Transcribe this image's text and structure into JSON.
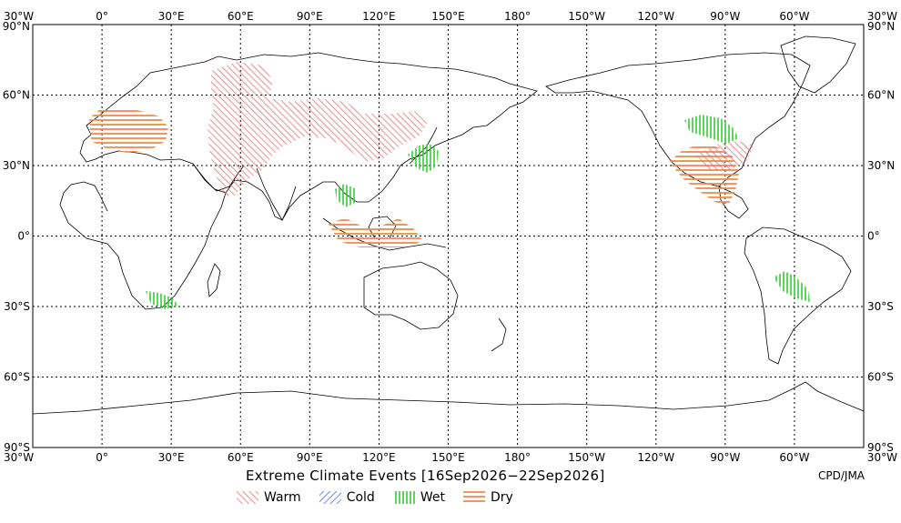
{
  "title": "Extreme Climate Events [16Sep2026−22Sep2026]",
  "credit": "CPD/JMA",
  "axes": {
    "lon_labels": [
      "30°W",
      "0°",
      "30°E",
      "60°E",
      "90°E",
      "120°E",
      "150°E",
      "180°",
      "150°W",
      "120°W",
      "90°W",
      "60°W",
      "30°W"
    ],
    "lat_labels": [
      "90°N",
      "60°N",
      "30°N",
      "0°",
      "30°S",
      "60°S",
      "90°S"
    ],
    "lon_range": [
      -30,
      330
    ],
    "lat_range": [
      90,
      -90
    ]
  },
  "legend": [
    {
      "key": "warm",
      "label": "Warm",
      "color": "#e8707a",
      "hatch": "warm-hatch"
    },
    {
      "key": "cold",
      "label": "Cold",
      "color": "#4a6cf0",
      "hatch": "cold-hatch"
    },
    {
      "key": "wet",
      "label": "Wet",
      "color": "#33cc33",
      "hatch": "wet-hatch"
    },
    {
      "key": "dry",
      "label": "Dry",
      "color": "#f08a4a",
      "hatch": "dry-hatch"
    }
  ]
}
